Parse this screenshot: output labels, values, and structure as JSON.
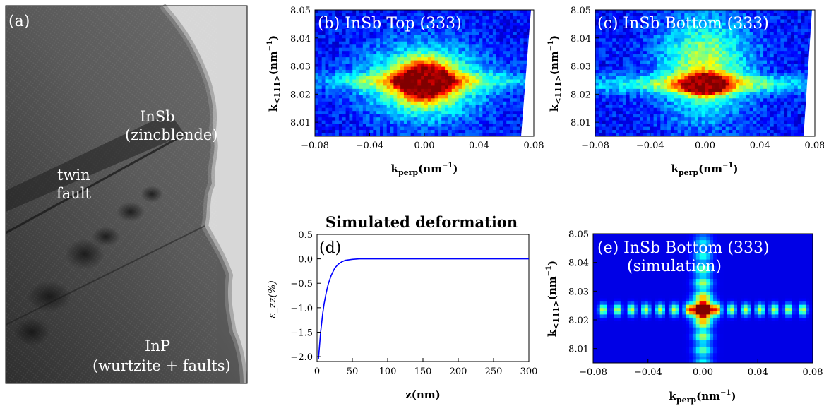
{
  "panels": {
    "a": {
      "label": "(a)",
      "texts": {
        "insb_name": "InSb",
        "insb_phase": "(zincblende)",
        "twin_1": "twin",
        "twin_2": "fault",
        "inp_name": "InP",
        "inp_phase": "(wurtzite + faults)"
      }
    },
    "b": {
      "title": "(b) InSb Top (333)"
    },
    "c": {
      "title": "(c) InSb Bottom (333)"
    },
    "d": {
      "label": "(d)"
    },
    "e": {
      "title_line1": "(e) InSb Bottom (333)",
      "title_line2": "(simulation)"
    }
  },
  "chart_data": [
    {
      "id": "b",
      "type": "heatmap",
      "title": "(b) InSb Top (333)",
      "xlabel_main": "k",
      "xlabel_sub": "perp",
      "xlabel_unit": "(nm",
      "xlabel_exp": "−1",
      "xlabel_close": ")",
      "ylabel_main": "k",
      "ylabel_sub": "<111>",
      "ylabel_unit": "(nm",
      "ylabel_exp": "−1",
      "ylabel_close": ")",
      "xlim": [
        -0.08,
        0.08
      ],
      "ylim": [
        8.005,
        8.05
      ],
      "xticks": [
        "−0.08",
        "−0.04",
        "0.00",
        "0.04",
        "0.08"
      ],
      "xtick_values": [
        -0.08,
        -0.04,
        0.0,
        0.04,
        0.08
      ],
      "yticks": [
        "8.01",
        "8.02",
        "8.03",
        "8.04",
        "8.05"
      ],
      "ytick_values": [
        8.01,
        8.02,
        8.03,
        8.04,
        8.05
      ],
      "peak": {
        "kx": 0.0,
        "ky": 8.0245
      },
      "colormap": "jet"
    },
    {
      "id": "c",
      "type": "heatmap",
      "title": "(c) InSb Bottom (333)",
      "xlabel_main": "k",
      "xlabel_sub": "perp",
      "xlabel_unit": "(nm",
      "xlabel_exp": "−1",
      "xlabel_close": ")",
      "ylabel_main": "k",
      "ylabel_sub": "<111>",
      "ylabel_unit": "(nm",
      "ylabel_exp": "−1",
      "ylabel_close": ")",
      "xlim": [
        -0.08,
        0.08
      ],
      "ylim": [
        8.005,
        8.05
      ],
      "xticks": [
        "−0.08",
        "−0.04",
        "0.00",
        "0.04",
        "0.08"
      ],
      "xtick_values": [
        -0.08,
        -0.04,
        0.0,
        0.04,
        0.08
      ],
      "yticks": [
        "8.01",
        "8.02",
        "8.03",
        "8.04",
        "8.05"
      ],
      "ytick_values": [
        8.01,
        8.02,
        8.03,
        8.04,
        8.05
      ],
      "peak": {
        "kx": 0.0,
        "ky": 8.0235
      },
      "colormap": "jet"
    },
    {
      "id": "d",
      "type": "line",
      "title": "Simulated deformation",
      "xlabel": "z(nm)",
      "ylabel": "ε_zz(%)",
      "xlim": [
        0,
        300
      ],
      "ylim": [
        -2.1,
        0.5
      ],
      "xticks": [
        "0",
        "50",
        "100",
        "150",
        "200",
        "250",
        "300"
      ],
      "xtick_values": [
        0,
        50,
        100,
        150,
        200,
        250,
        300
      ],
      "yticks": [
        "0.5",
        "0.0",
        "−0.5",
        "−1.0",
        "−1.5",
        "−2.0"
      ],
      "ytick_values": [
        0.5,
        0.0,
        -0.5,
        -1.0,
        -1.5,
        -2.0
      ],
      "series": [
        {
          "color": "#0000ff",
          "x": [
            2,
            5,
            8,
            10,
            13,
            16,
            20,
            25,
            30,
            35,
            40,
            50,
            60,
            80,
            100,
            150,
            200,
            250,
            300
          ],
          "y": [
            -2.05,
            -1.51,
            -1.12,
            -0.92,
            -0.69,
            -0.51,
            -0.34,
            -0.19,
            -0.11,
            -0.06,
            -0.03,
            -0.01,
            0.0,
            0.0,
            0.0,
            0.0,
            0.0,
            0.0,
            0.0
          ]
        }
      ]
    },
    {
      "id": "e",
      "type": "heatmap",
      "title": "(e) InSb Bottom (333) (simulation)",
      "xlabel_main": "k",
      "xlabel_sub": "perp",
      "xlabel_unit": "(nm",
      "xlabel_exp": "−1",
      "xlabel_close": ")",
      "ylabel_main": "k",
      "ylabel_sub": "<111>",
      "ylabel_unit": "(nm",
      "ylabel_exp": "−1",
      "ylabel_close": ")",
      "xlim": [
        -0.08,
        0.08
      ],
      "ylim": [
        8.005,
        8.05
      ],
      "xticks": [
        "−0.08",
        "−0.04",
        "0.00",
        "0.04",
        "0.08"
      ],
      "xtick_values": [
        -0.08,
        -0.04,
        0.0,
        0.04,
        0.08
      ],
      "yticks": [
        "8.01",
        "8.02",
        "8.03",
        "8.04",
        "8.05"
      ],
      "ytick_values": [
        8.01,
        8.02,
        8.03,
        8.04,
        8.05
      ],
      "peak": {
        "kx": 0.0,
        "ky": 8.0235
      },
      "colormap": "jet"
    }
  ],
  "colors": {
    "colormap_stops": [
      "#00008f",
      "#0000ff",
      "#00ffff",
      "#ffff00",
      "#ff0000",
      "#800000"
    ],
    "line": "#0000ff"
  }
}
